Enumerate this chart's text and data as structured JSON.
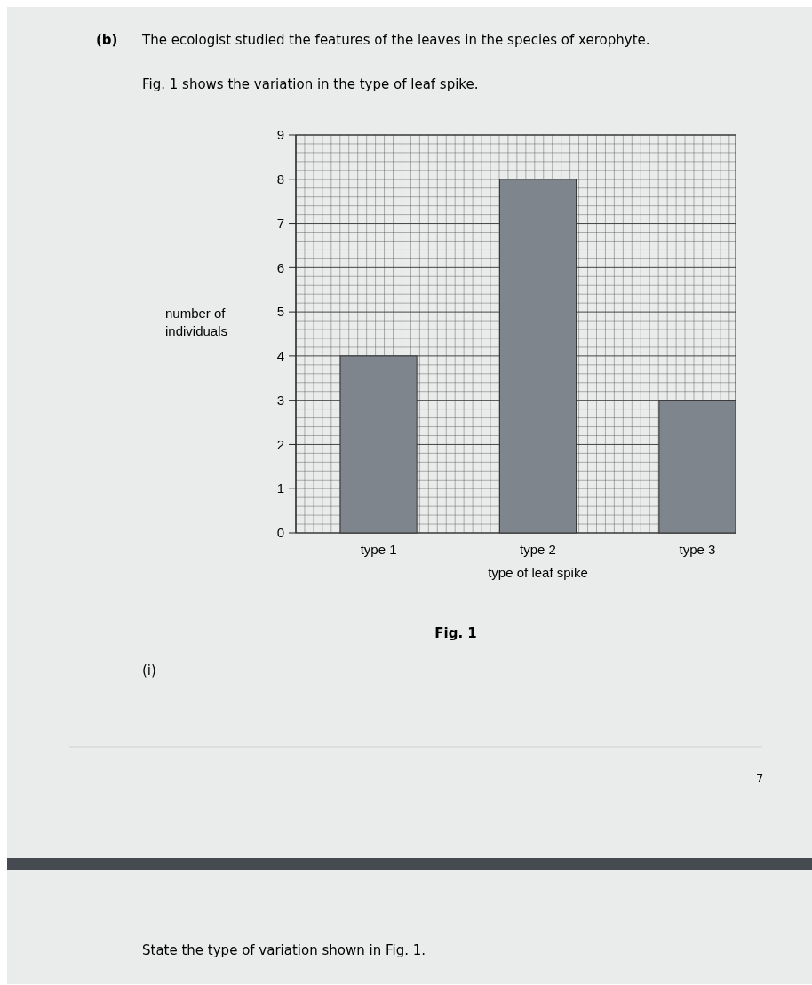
{
  "chart_data": {
    "type": "bar",
    "title": "(b) The ecologist studied the features of the leaves in the species of xerophyte.",
    "subtitle": "Fig. 1 shows the variation in the type of leaf spike.",
    "xlabel": "type of leaf spike",
    "ylabel": "number of individuals",
    "categories": [
      "type 1",
      "type 2",
      "type 3"
    ],
    "values": [
      4,
      8,
      3
    ],
    "color": "#7f858c",
    "ylim": [
      0,
      9
    ],
    "yticks": [
      0,
      1,
      2,
      3,
      4,
      5,
      6,
      7,
      8,
      9
    ],
    "grid": true,
    "annotations": [
      "Fig. 1",
      "(i)",
      "7",
      "State the type of variation shown in Fig. 1."
    ]
  }
}
